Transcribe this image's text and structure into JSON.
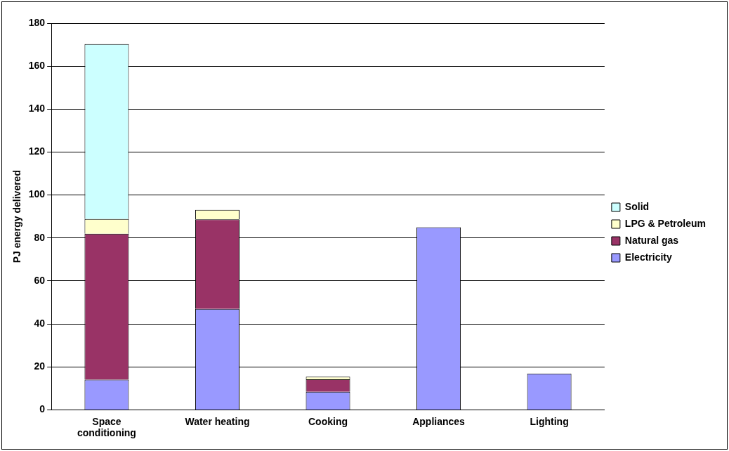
{
  "chart_data": {
    "type": "bar",
    "stacked": true,
    "ylabel": "PJ energy delivered",
    "categories": [
      "Space conditioning",
      "Water heating",
      "Cooking",
      "Appliances",
      "Lighting"
    ],
    "series": [
      {
        "name": "Electricity",
        "color": "#9999ff",
        "values": [
          14,
          47,
          8.4,
          85,
          16.9
        ]
      },
      {
        "name": "Natural gas",
        "color": "#993366",
        "values": [
          68,
          41.7,
          5.8,
          null,
          null
        ]
      },
      {
        "name": "LPG & Petroleum",
        "color": "#ffffcc",
        "values": [
          6.8,
          4.4,
          1.2,
          null,
          null
        ]
      },
      {
        "name": "Solid",
        "color": "#ccffff",
        "values": [
          81.5,
          null,
          null,
          null,
          null
        ]
      }
    ],
    "ylim": [
      0,
      180
    ],
    "yticks": [
      0,
      20,
      40,
      60,
      80,
      100,
      120,
      140,
      160,
      180
    ],
    "grid": "y",
    "legend": "right"
  }
}
